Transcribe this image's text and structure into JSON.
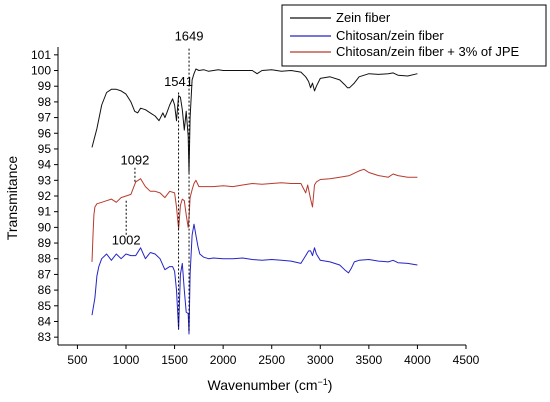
{
  "chart_data": {
    "type": "line",
    "xlabel": "Wavenumber (cm",
    "xlabel_sup": "−1",
    "xlabel_end": ")",
    "ylabel": "Transmitance",
    "xlim": [
      300,
      4500
    ],
    "ylim": [
      82.5,
      101.5
    ],
    "xticks": [
      500,
      1000,
      1500,
      2000,
      2500,
      3000,
      3500,
      4000,
      4500
    ],
    "yticks": [
      83,
      84,
      85,
      86,
      87,
      88,
      89,
      90,
      91,
      92,
      93,
      94,
      95,
      96,
      97,
      98,
      99,
      100,
      101
    ],
    "grid": false,
    "legend_position": "top-right",
    "series": [
      {
        "name": "Zein fiber",
        "color": "#111111",
        "x": [
          650,
          700,
          750,
          800,
          850,
          900,
          950,
          1000,
          1050,
          1090,
          1120,
          1150,
          1200,
          1250,
          1300,
          1340,
          1380,
          1400,
          1420,
          1450,
          1480,
          1500,
          1520,
          1541,
          1560,
          1580,
          1600,
          1620,
          1640,
          1649,
          1660,
          1680,
          1700,
          1720,
          1750,
          1800,
          1850,
          1900,
          1950,
          2000,
          2100,
          2200,
          2300,
          2350,
          2400,
          2500,
          2600,
          2700,
          2800,
          2850,
          2880,
          2900,
          2920,
          2940,
          2960,
          3000,
          3100,
          3200,
          3250,
          3280,
          3300,
          3350,
          3400,
          3500,
          3600,
          3700,
          3750,
          3800,
          3900,
          4000
        ],
        "y": [
          95.1,
          96.3,
          97.8,
          98.6,
          98.8,
          98.8,
          98.7,
          98.5,
          98.0,
          97.4,
          97.3,
          97.6,
          97.5,
          97.3,
          97.1,
          96.8,
          97.3,
          97.0,
          97.3,
          97.8,
          98.2,
          97.8,
          96.8,
          98.4,
          98.3,
          97.5,
          96.2,
          97.4,
          95.8,
          93.5,
          97.0,
          99.4,
          99.8,
          100.1,
          100.0,
          100.05,
          99.95,
          100.0,
          100.05,
          100.0,
          100.0,
          100.0,
          100.0,
          99.8,
          100.0,
          100.05,
          99.95,
          100.0,
          99.9,
          99.6,
          99.3,
          98.9,
          99.2,
          98.7,
          99.0,
          99.5,
          99.6,
          99.4,
          99.1,
          98.9,
          98.9,
          99.2,
          99.6,
          99.8,
          99.75,
          99.8,
          99.85,
          99.7,
          99.65,
          99.8
        ]
      },
      {
        "name": "Chitosan/zein fiber",
        "color": "#2323c8",
        "x": [
          650,
          680,
          700,
          720,
          750,
          800,
          850,
          900,
          950,
          1000,
          1050,
          1100,
          1150,
          1200,
          1250,
          1300,
          1350,
          1400,
          1450,
          1480,
          1500,
          1520,
          1541,
          1560,
          1580,
          1600,
          1620,
          1640,
          1649,
          1660,
          1680,
          1700,
          1720,
          1740,
          1760,
          1800,
          1850,
          1900,
          2000,
          2100,
          2200,
          2300,
          2400,
          2500,
          2600,
          2700,
          2800,
          2850,
          2880,
          2900,
          2920,
          2940,
          2960,
          3000,
          3100,
          3200,
          3250,
          3290,
          3320,
          3350,
          3400,
          3500,
          3600,
          3700,
          3750,
          3800,
          3900,
          4000
        ],
        "y": [
          84.4,
          85.5,
          86.9,
          87.5,
          88.0,
          88.3,
          87.9,
          88.3,
          88.0,
          88.3,
          88.2,
          88.2,
          88.7,
          88.0,
          88.4,
          88.3,
          88.0,
          87.3,
          87.5,
          87.5,
          87.2,
          86.0,
          83.5,
          87.0,
          87.7,
          86.0,
          84.6,
          84.5,
          83.2,
          87.0,
          89.5,
          90.2,
          89.5,
          88.8,
          88.3,
          88.1,
          88.0,
          88.05,
          88.0,
          88.0,
          88.05,
          87.95,
          87.9,
          87.95,
          87.9,
          87.85,
          87.7,
          88.2,
          88.5,
          88.5,
          88.2,
          88.7,
          88.3,
          87.9,
          87.8,
          87.6,
          87.3,
          87.1,
          87.4,
          87.8,
          87.9,
          87.95,
          87.85,
          87.8,
          87.9,
          87.75,
          87.7,
          87.6
        ]
      },
      {
        "name": "Chitosan/zein fiber + 3% of JPE",
        "color": "#b83a2e",
        "x": [
          650,
          660,
          670,
          680,
          700,
          750,
          800,
          850,
          900,
          950,
          1000,
          1050,
          1100,
          1150,
          1200,
          1250,
          1300,
          1350,
          1400,
          1450,
          1500,
          1520,
          1541,
          1560,
          1580,
          1600,
          1620,
          1640,
          1649,
          1660,
          1680,
          1700,
          1720,
          1750,
          1800,
          1900,
          2000,
          2100,
          2200,
          2300,
          2400,
          2500,
          2600,
          2700,
          2800,
          2850,
          2870,
          2900,
          2920,
          2940,
          2960,
          3000,
          3100,
          3200,
          3300,
          3400,
          3450,
          3500,
          3600,
          3700,
          3750,
          3800,
          3900,
          4000
        ],
        "y": [
          87.8,
          89.5,
          90.8,
          91.3,
          91.5,
          91.6,
          91.7,
          91.8,
          91.6,
          91.9,
          92.0,
          92.1,
          92.9,
          93.1,
          92.6,
          92.3,
          92.3,
          92.2,
          91.9,
          92.3,
          92.2,
          91.3,
          89.9,
          91.4,
          91.8,
          91.7,
          90.8,
          90.0,
          90.6,
          91.9,
          92.4,
          92.8,
          93.0,
          92.6,
          92.6,
          92.6,
          92.65,
          92.6,
          92.7,
          92.8,
          92.75,
          92.8,
          92.85,
          92.8,
          92.8,
          92.2,
          92.7,
          91.8,
          91.3,
          92.7,
          92.9,
          93.05,
          93.1,
          93.2,
          93.3,
          93.6,
          93.7,
          93.5,
          93.3,
          93.2,
          93.4,
          93.3,
          93.2,
          93.2
        ]
      }
    ],
    "annotations": [
      {
        "text": "1649",
        "x": 1649,
        "y_from": 101.4,
        "y_to": 83.3,
        "label_y": 101.9
      },
      {
        "text": "1541",
        "x": 1541,
        "y_from": 98.6,
        "y_to": 83.5,
        "label_y": 99.0
      },
      {
        "text": "1092",
        "x": 1092,
        "y_from": 93.8,
        "y_to": 92.9,
        "label_y": 94.0
      },
      {
        "text": "1002",
        "x": 1002,
        "y_from": 91.7,
        "y_to": 89.5,
        "label_y": 88.9
      }
    ]
  }
}
